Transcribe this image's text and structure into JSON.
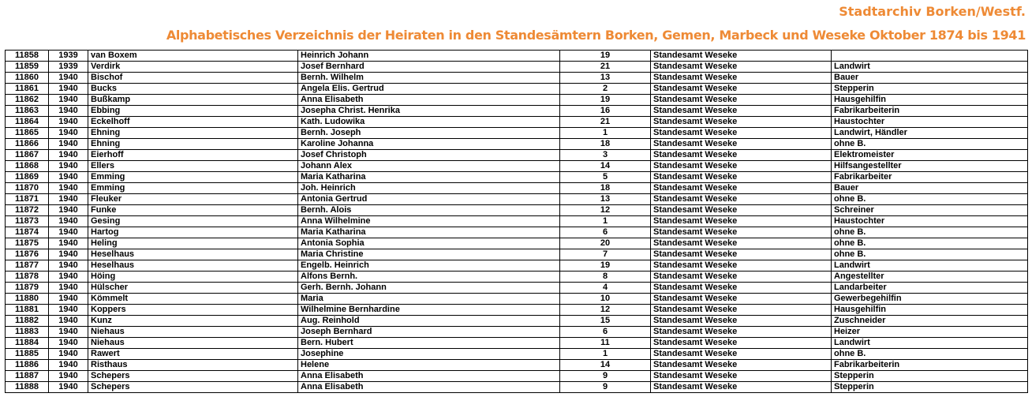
{
  "header": {
    "archive": "Stadtarchiv Borken/Westf.",
    "title": "Alphabetisches Verzeichnis der Heiraten in den Standesämtern Borken, Gemen, Marbeck und Weseke Oktober 1874 bis 1941"
  },
  "colors": {
    "header_text": "#ee8a35",
    "grid": "#000000"
  },
  "rows": [
    [
      "11858",
      "1939",
      "van Boxem",
      "Heinrich Johann",
      "19",
      "Standesamt Weseke",
      ""
    ],
    [
      "11859",
      "1939",
      "Verdirk",
      "Josef Bernhard",
      "21",
      "Standesamt Weseke",
      "Landwirt"
    ],
    [
      "11860",
      "1940",
      "Bischof",
      "Bernh. Wilhelm",
      "13",
      "Standesamt Weseke",
      "Bauer"
    ],
    [
      "11861",
      "1940",
      "Bucks",
      "Angela Elis. Gertrud",
      "2",
      "Standesamt Weseke",
      "Stepperin"
    ],
    [
      "11862",
      "1940",
      "Bußkamp",
      "Anna Elisabeth",
      "19",
      "Standesamt Weseke",
      "Hausgehilfin"
    ],
    [
      "11863",
      "1940",
      "Ebbing",
      "Josepha Christ. Henrika",
      "16",
      "Standesamt Weseke",
      "Fabrikarbeiterin"
    ],
    [
      "11864",
      "1940",
      "Eckelhoff",
      "Kath. Ludowika",
      "21",
      "Standesamt Weseke",
      "Haustochter"
    ],
    [
      "11865",
      "1940",
      "Ehning",
      "Bernh. Joseph",
      "1",
      "Standesamt Weseke",
      "Landwirt, Händler"
    ],
    [
      "11866",
      "1940",
      "Ehning",
      "Karoline Johanna",
      "18",
      "Standesamt Weseke",
      "ohne B."
    ],
    [
      "11867",
      "1940",
      "Eierhoff",
      "Josef Christoph",
      "3",
      "Standesamt Weseke",
      "Elektromeister"
    ],
    [
      "11868",
      "1940",
      "Ellers",
      "Johann Alex",
      "14",
      "Standesamt Weseke",
      "Hilfsangestellter"
    ],
    [
      "11869",
      "1940",
      "Emming",
      "Maria Katharina",
      "5",
      "Standesamt Weseke",
      "Fabrikarbeiter"
    ],
    [
      "11870",
      "1940",
      "Emming",
      "Joh. Heinrich",
      "18",
      "Standesamt Weseke",
      "Bauer"
    ],
    [
      "11871",
      "1940",
      "Fleuker",
      "Antonia Gertrud",
      "13",
      "Standesamt Weseke",
      "ohne B."
    ],
    [
      "11872",
      "1940",
      "Funke",
      "Bernh. Alois",
      "12",
      "Standesamt Weseke",
      "Schreiner"
    ],
    [
      "11873",
      "1940",
      "Gesing",
      "Anna Wilhelmine",
      "1",
      "Standesamt Weseke",
      "Haustochter"
    ],
    [
      "11874",
      "1940",
      "Hartog",
      "Maria Katharina",
      "6",
      "Standesamt Weseke",
      "ohne B."
    ],
    [
      "11875",
      "1940",
      "Heling",
      "Antonia Sophia",
      "20",
      "Standesamt Weseke",
      "ohne B."
    ],
    [
      "11876",
      "1940",
      "Heselhaus",
      "Maria Christine",
      "7",
      "Standesamt Weseke",
      "ohne B."
    ],
    [
      "11877",
      "1940",
      "Heselhaus",
      "Engelb. Heinrich",
      "19",
      "Standesamt Weseke",
      "Landwirt"
    ],
    [
      "11878",
      "1940",
      "Höing",
      "Alfons Bernh.",
      "8",
      "Standesamt Weseke",
      "Angestellter"
    ],
    [
      "11879",
      "1940",
      "Hülscher",
      "Gerh. Bernh. Johann",
      "4",
      "Standesamt Weseke",
      "Landarbeiter"
    ],
    [
      "11880",
      "1940",
      "Kömmelt",
      "Maria",
      "10",
      "Standesamt Weseke",
      "Gewerbegehilfin"
    ],
    [
      "11881",
      "1940",
      "Koppers",
      "Wilhelmine Bernhardine",
      "12",
      "Standesamt Weseke",
      "Hausgehilfin"
    ],
    [
      "11882",
      "1940",
      "Kunz",
      "Aug. Reinhold",
      "15",
      "Standesamt Weseke",
      "Zuschneider"
    ],
    [
      "11883",
      "1940",
      "Niehaus",
      "Joseph Bernhard",
      "6",
      "Standesamt Weseke",
      "Heizer"
    ],
    [
      "11884",
      "1940",
      "Niehaus",
      "Bern. Hubert",
      "11",
      "Standesamt Weseke",
      "Landwirt"
    ],
    [
      "11885",
      "1940",
      "Rawert",
      "Josephine",
      "1",
      "Standesamt Weseke",
      "ohne B."
    ],
    [
      "11886",
      "1940",
      "Risthaus",
      "Helene",
      "14",
      "Standesamt Weseke",
      "Fabrikarbeiterin"
    ],
    [
      "11887",
      "1940",
      "Schepers",
      "Anna Elisabeth",
      "9",
      "Standesamt Weseke",
      "Stepperin"
    ],
    [
      "11888",
      "1940",
      "Schepers",
      "Anna Elisabeth",
      "9",
      "Standesamt Weseke",
      "Stepperin"
    ]
  ]
}
